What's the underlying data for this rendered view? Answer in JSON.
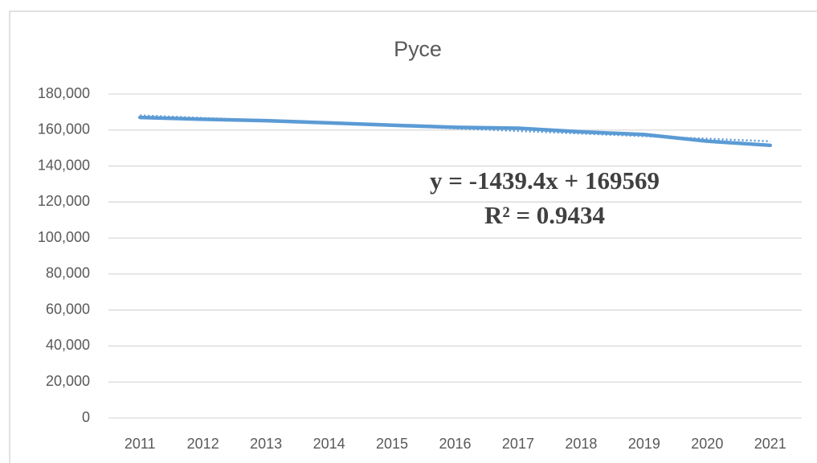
{
  "chart_data": {
    "type": "line",
    "title": "Русе",
    "categories": [
      "2011",
      "2012",
      "2013",
      "2014",
      "2015",
      "2016",
      "2017",
      "2018",
      "2019",
      "2020",
      "2021"
    ],
    "series": [
      {
        "name": "Русе",
        "color": "#5b9bd5",
        "values": [
          167000,
          166000,
          165200,
          164000,
          162700,
          161500,
          161000,
          159000,
          157500,
          153800,
          151500
        ]
      }
    ],
    "ylim": [
      0,
      180000
    ],
    "yticks": [
      0,
      {
        "value": 20000,
        "label": "20,000"
      },
      {
        "value": 40000,
        "label": "40,000"
      },
      {
        "value": 60000,
        "label": "60,000"
      },
      {
        "value": 80000,
        "label": "80,000"
      },
      {
        "value": 100000,
        "label": "100,000"
      },
      {
        "value": 120000,
        "label": "120,000"
      },
      {
        "value": 140000,
        "label": "140,000"
      },
      {
        "value": 160000,
        "label": "160,000"
      },
      {
        "value": 180000,
        "label": "180,000"
      }
    ],
    "grid": true,
    "trendline": {
      "equation": "y = -1439.4x + 169569",
      "r2": "R² = 0.9434",
      "slope": -1439.4,
      "intercept": 169569,
      "style": "dotted"
    }
  }
}
